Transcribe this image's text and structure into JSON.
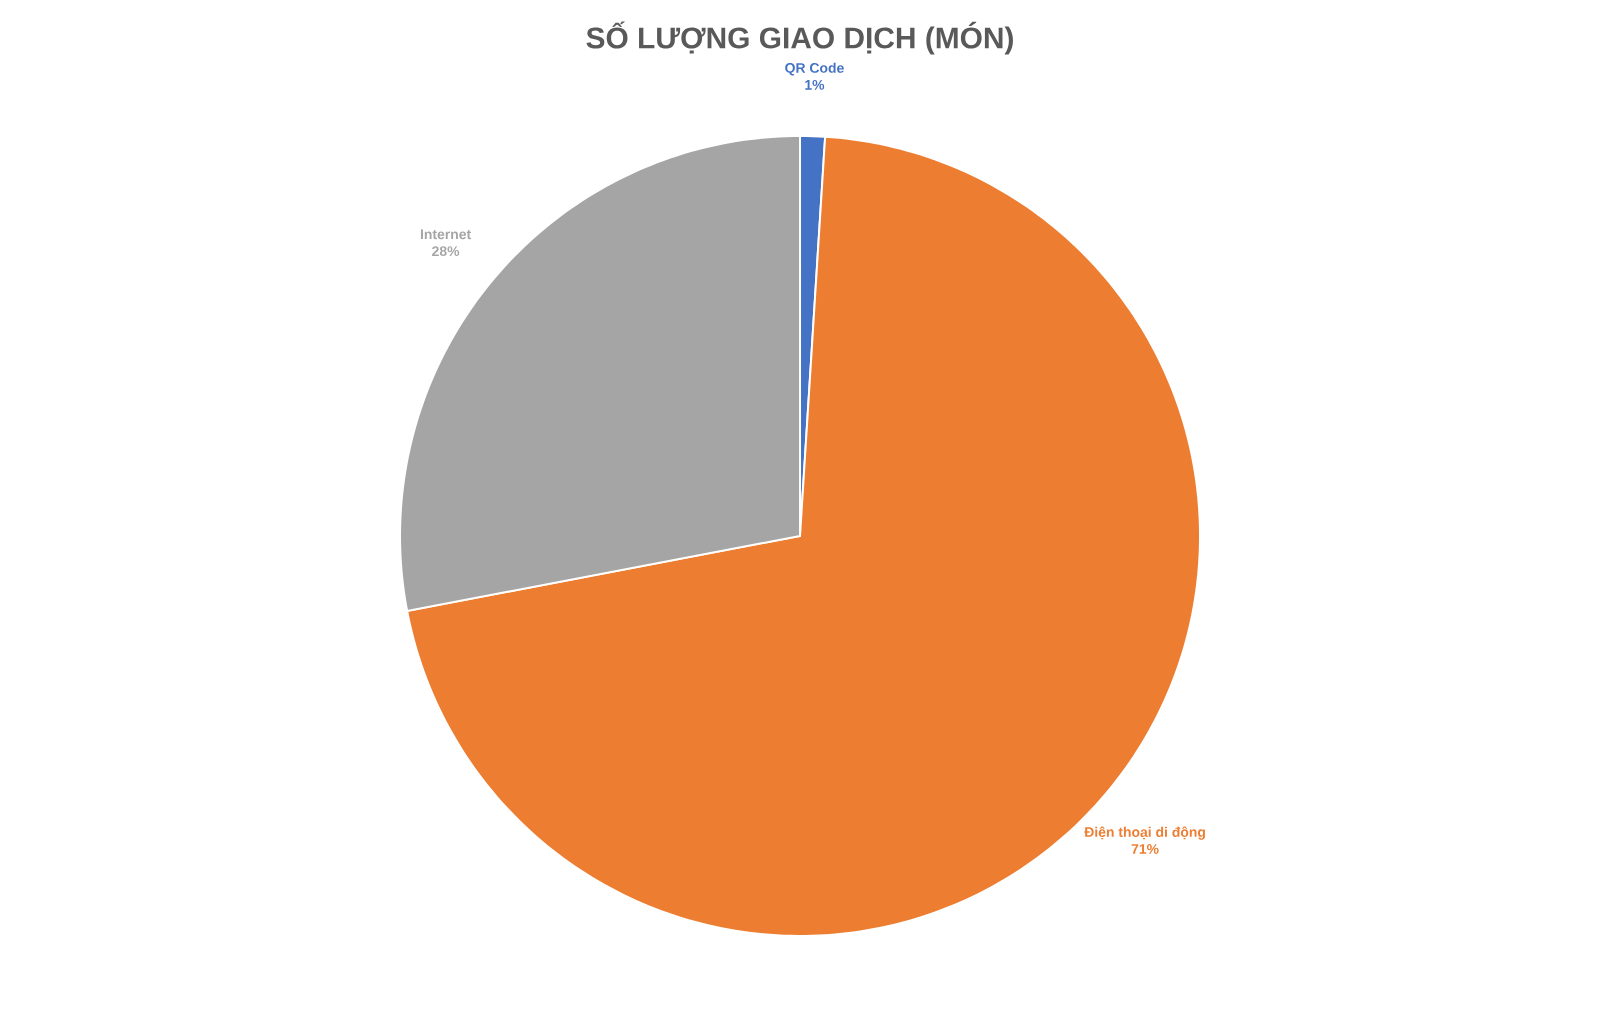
{
  "chart_data": {
    "type": "pie",
    "title": "SỐ LƯỢNG GIAO DỊCH (MÓN)",
    "categories": [
      "QR Code",
      "Điện thoại di động",
      "Internet"
    ],
    "values": [
      1,
      71,
      28
    ],
    "value_labels": [
      "1%",
      "71%",
      "28%"
    ],
    "colors": [
      "#4472c4",
      "#ed7d31",
      "#a5a5a5"
    ]
  }
}
